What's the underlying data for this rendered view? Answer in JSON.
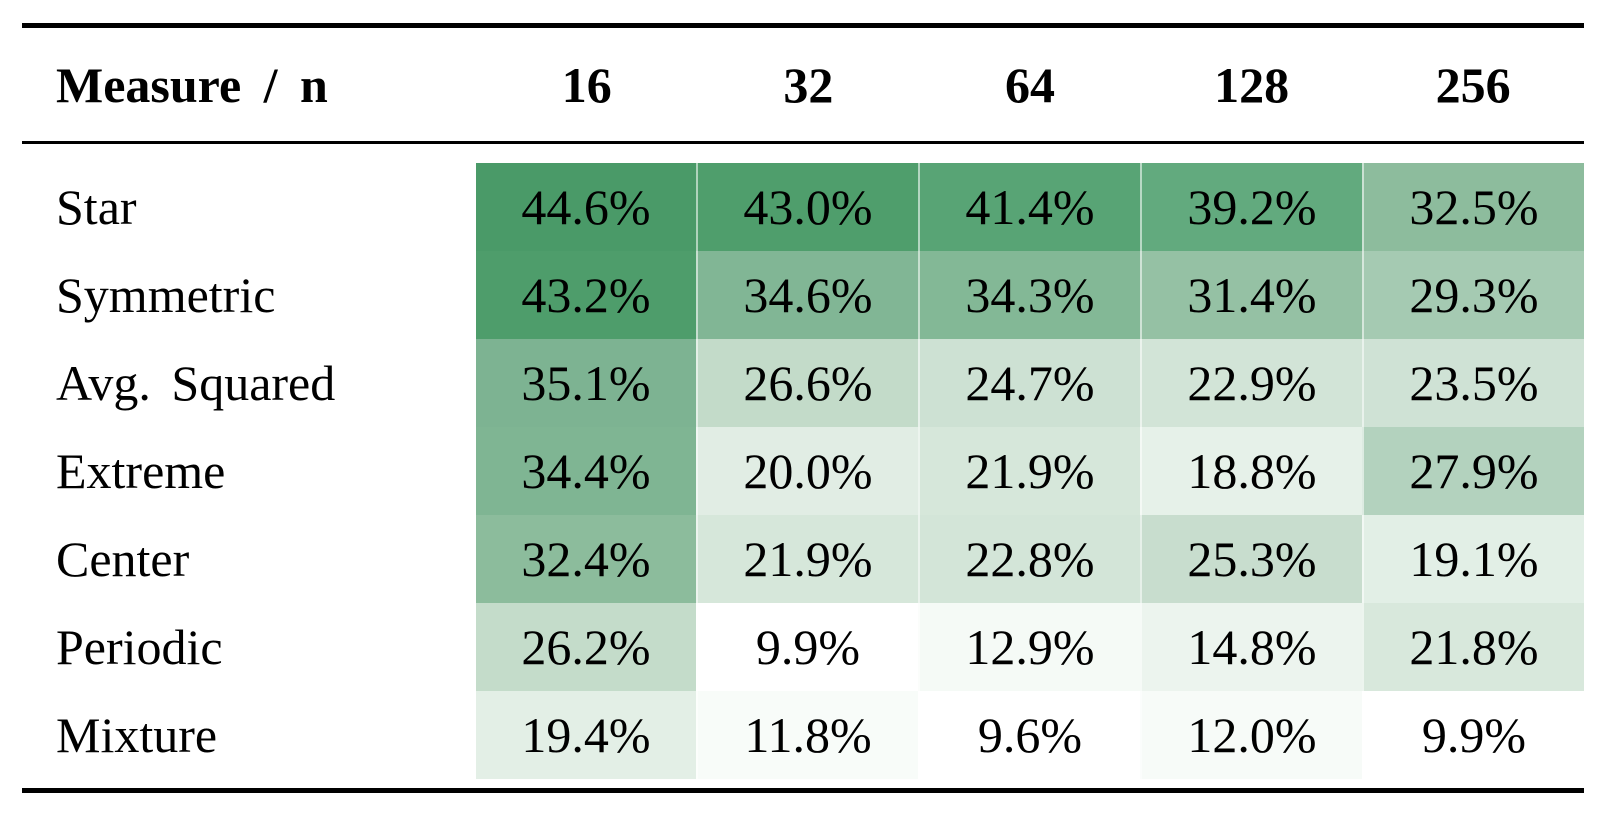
{
  "table": {
    "corner_header": "Measure / n",
    "columns": [
      "16",
      "32",
      "64",
      "128",
      "256"
    ],
    "rows": [
      {
        "label": "Star",
        "cells": [
          {
            "text": "44.6%",
            "bg": "#4a9a68"
          },
          {
            "text": "43.0%",
            "bg": "#4f9e6c"
          },
          {
            "text": "41.4%",
            "bg": "#58a475"
          },
          {
            "text": "39.2%",
            "bg": "#62aa7e"
          },
          {
            "text": "32.5%",
            "bg": "#8dbc9d"
          }
        ]
      },
      {
        "label": "Symmetric",
        "cells": [
          {
            "text": "43.2%",
            "bg": "#4e9d6b"
          },
          {
            "text": "34.6%",
            "bg": "#81b695"
          },
          {
            "text": "34.3%",
            "bg": "#83b896"
          },
          {
            "text": "31.4%",
            "bg": "#95c1a4"
          },
          {
            "text": "29.3%",
            "bg": "#a5cab2"
          }
        ]
      },
      {
        "label": "Avg. Squared",
        "cells": [
          {
            "text": "35.1%",
            "bg": "#7db392"
          },
          {
            "text": "26.6%",
            "bg": "#c3dbc9"
          },
          {
            "text": "24.7%",
            "bg": "#cde1d3"
          },
          {
            "text": "22.9%",
            "bg": "#d2e4d7"
          },
          {
            "text": "23.5%",
            "bg": "#cfe2d5"
          }
        ]
      },
      {
        "label": "Extreme",
        "cells": [
          {
            "text": "34.4%",
            "bg": "#7fb593"
          },
          {
            "text": "20.0%",
            "bg": "#e1ede4"
          },
          {
            "text": "21.9%",
            "bg": "#d6e7da"
          },
          {
            "text": "18.8%",
            "bg": "#e6f1e9"
          },
          {
            "text": "27.9%",
            "bg": "#b3d2be"
          }
        ]
      },
      {
        "label": "Center",
        "cells": [
          {
            "text": "32.4%",
            "bg": "#8cbc9c"
          },
          {
            "text": "21.9%",
            "bg": "#d6e7da"
          },
          {
            "text": "22.8%",
            "bg": "#d3e5d8"
          },
          {
            "text": "25.3%",
            "bg": "#c8ddce"
          },
          {
            "text": "19.1%",
            "bg": "#e2efe6"
          }
        ]
      },
      {
        "label": "Periodic",
        "cells": [
          {
            "text": "26.2%",
            "bg": "#c4dcca"
          },
          {
            "text": "9.9%",
            "bg": "#ffffff"
          },
          {
            "text": "12.9%",
            "bg": "#f5faf6"
          },
          {
            "text": "14.8%",
            "bg": "#ecf4ee"
          },
          {
            "text": "21.8%",
            "bg": "#d8e8dc"
          }
        ]
      },
      {
        "label": "Mixture",
        "cells": [
          {
            "text": "19.4%",
            "bg": "#e3efe6"
          },
          {
            "text": "11.8%",
            "bg": "#f8fcf9"
          },
          {
            "text": "9.6%",
            "bg": "#ffffff"
          },
          {
            "text": "12.0%",
            "bg": "#f7fbf8"
          },
          {
            "text": "9.9%",
            "bg": "#ffffff"
          }
        ]
      }
    ]
  },
  "chart_data": {
    "type": "heatmap",
    "corner_header": "Measure / n",
    "columns": [
      16,
      32,
      64,
      128,
      256
    ],
    "row_labels": [
      "Star",
      "Symmetric",
      "Avg. Squared",
      "Extreme",
      "Center",
      "Periodic",
      "Mixture"
    ],
    "series": [
      {
        "name": "Star",
        "values": [
          44.6,
          43.0,
          41.4,
          39.2,
          32.5
        ]
      },
      {
        "name": "Symmetric",
        "values": [
          43.2,
          34.6,
          34.3,
          31.4,
          29.3
        ]
      },
      {
        "name": "Avg. Squared",
        "values": [
          35.1,
          26.6,
          24.7,
          22.9,
          23.5
        ]
      },
      {
        "name": "Extreme",
        "values": [
          34.4,
          20.0,
          21.9,
          18.8,
          27.9
        ]
      },
      {
        "name": "Center",
        "values": [
          32.4,
          21.9,
          22.8,
          25.3,
          19.1
        ]
      },
      {
        "name": "Periodic",
        "values": [
          26.2,
          9.9,
          12.9,
          14.8,
          21.8
        ]
      },
      {
        "name": "Mixture",
        "values": [
          19.4,
          11.8,
          9.6,
          12.0,
          9.9
        ]
      }
    ],
    "unit": "%",
    "legend_position": "none",
    "color_scale": {
      "low_value": 9.6,
      "high_value": 44.6,
      "low_color": "#ffffff",
      "high_color": "#4a9a68"
    }
  },
  "colors": {
    "rule": "#000000",
    "text": "#000000",
    "background": "#ffffff",
    "heatmap_max_green": "#4a9a68"
  }
}
